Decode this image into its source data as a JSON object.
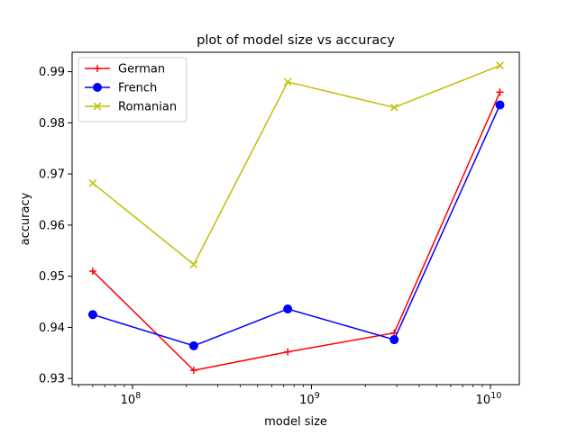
{
  "chart_data": {
    "type": "line",
    "title": "plot of model size vs accuracy",
    "xlabel": "model size",
    "ylabel": "accuracy",
    "x_scale": "log",
    "x": [
      60000000,
      220000000,
      737000000,
      2900000000,
      11300000000
    ],
    "xlim": [
      46000000,
      14500000000
    ],
    "ylim": [
      0.9288,
      0.9938
    ],
    "y_ticks": [
      0.93,
      0.94,
      0.95,
      0.96,
      0.97,
      0.98,
      0.99
    ],
    "y_tick_labels": [
      "0.93",
      "0.94",
      "0.95",
      "0.96",
      "0.97",
      "0.98",
      "0.99"
    ],
    "x_major_ticks": [
      100000000,
      1000000000,
      10000000000
    ],
    "x_tick_labels": [
      {
        "base": "10",
        "exp": "8"
      },
      {
        "base": "10",
        "exp": "9"
      },
      {
        "base": "10",
        "exp": "10"
      }
    ],
    "grid": false,
    "legend_position": "upper left",
    "series": [
      {
        "name": "German",
        "color": "#ff0000",
        "marker": "plus",
        "values": [
          0.951,
          0.9316,
          0.9352,
          0.9389,
          0.986
        ]
      },
      {
        "name": "French",
        "color": "#0000ff",
        "marker": "circle",
        "values": [
          0.9425,
          0.9364,
          0.9436,
          0.9376,
          0.9835
        ]
      },
      {
        "name": "Romanian",
        "color": "#bfbf00",
        "marker": "x",
        "values": [
          0.9682,
          0.9523,
          0.988,
          0.983,
          0.9912
        ]
      }
    ]
  }
}
